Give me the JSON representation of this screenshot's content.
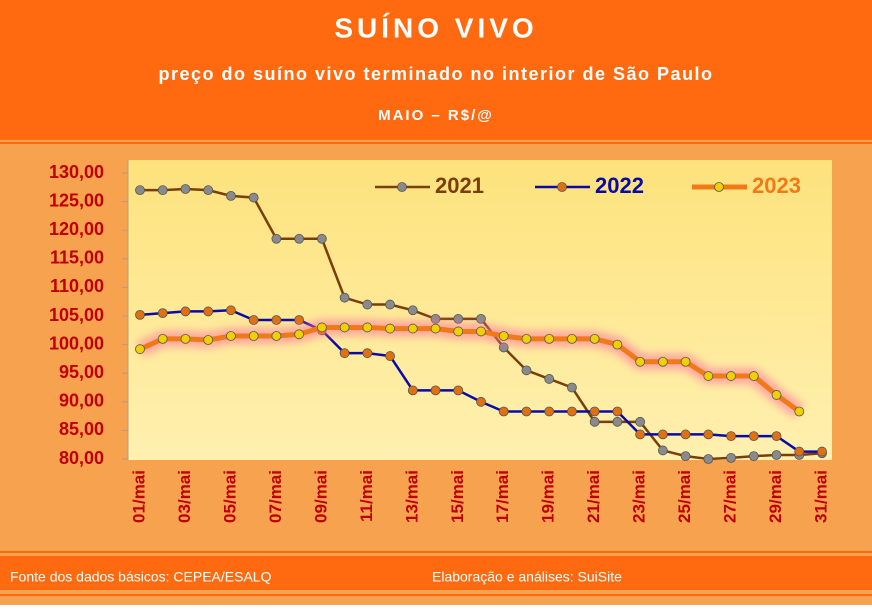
{
  "chart_data": {
    "type": "line",
    "title": "SUÍNO VIVO",
    "subtitle": "preço do suíno vivo terminado no interior de São Paulo",
    "caption": "MAIO – R$/@",
    "source": "Fonte dos dados básicos: CEPEA/ESALQ",
    "credit": "Elaboração e análises: SuiSite",
    "categories": [
      "01/mai",
      null,
      "03/mai",
      null,
      "05/mai",
      null,
      "07/mai",
      null,
      "09/mai",
      null,
      "11/mai",
      null,
      "13/mai",
      null,
      "15/mai",
      null,
      "17/mai",
      null,
      "19/mai",
      null,
      "21/mai",
      null,
      "23/mai",
      null,
      "25/mai",
      null,
      "27/mai",
      null,
      "29/mai",
      null,
      "31/mai"
    ],
    "series": [
      {
        "name": "2021",
        "color": "#7a3e0a",
        "marker_color": "#8a8a8a",
        "values": [
          127,
          127,
          127.2,
          127,
          126,
          125.7,
          118.5,
          118.5,
          118.5,
          108.2,
          107,
          107,
          106,
          104.5,
          104.5,
          104.5,
          99.5,
          95.5,
          94,
          92.5,
          86.5,
          86.5,
          86.5,
          81.5,
          80.5,
          80,
          80.2,
          80.5,
          80.7,
          80.7,
          81
        ]
      },
      {
        "name": "2022",
        "color": "#0a0aa8",
        "marker_color": "#e07010",
        "values": [
          105.2,
          105.5,
          105.8,
          105.8,
          106,
          104.3,
          104.3,
          104.3,
          102.5,
          98.5,
          98.5,
          98,
          92,
          92,
          92,
          90,
          88.3,
          88.3,
          88.3,
          88.3,
          88.3,
          88.3,
          84.3,
          84.3,
          84.3,
          84.3,
          84,
          84,
          84,
          81.3,
          81.3
        ]
      },
      {
        "name": "2023",
        "color": "#f07a18",
        "marker_color": "#f2d000",
        "values": [
          99.2,
          101,
          101,
          100.8,
          101.5,
          101.5,
          101.5,
          101.8,
          103,
          103,
          103,
          102.8,
          102.8,
          102.8,
          102.3,
          102.3,
          101.5,
          101,
          101,
          101,
          101,
          100,
          97,
          97,
          97,
          94.5,
          94.5,
          94.5,
          91.2,
          88.3,
          null
        ]
      }
    ],
    "ylim": [
      80,
      130
    ],
    "yticks": [
      {
        "value": 80,
        "label": "80,00"
      },
      {
        "value": 85,
        "label": "85,00"
      },
      {
        "value": 90,
        "label": "90,00"
      },
      {
        "value": 95,
        "label": "95,00"
      },
      {
        "value": 100,
        "label": "100,00"
      },
      {
        "value": 105,
        "label": "105,00"
      },
      {
        "value": 110,
        "label": "110,00"
      },
      {
        "value": 115,
        "label": "115,00"
      },
      {
        "value": 120,
        "label": "120,00"
      },
      {
        "value": 125,
        "label": "125,00"
      },
      {
        "value": 130,
        "label": "130,00"
      }
    ],
    "grid": false,
    "legend": "top"
  }
}
